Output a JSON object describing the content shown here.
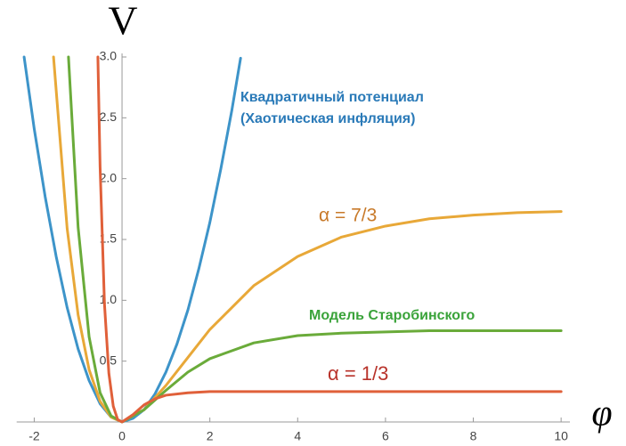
{
  "chart_data": {
    "type": "line",
    "annotations": [
      "Квадратичный потенциал",
      "(Хаотическая инфляция)",
      "α = 7/3",
      "Модель Старобинского",
      "α = 1/3"
    ],
    "ylabel": "V",
    "xlabel": "φ",
    "xlim": [
      -2.4,
      10.2
    ],
    "ylim": [
      0,
      3.0
    ],
    "xticks": [
      -2,
      0,
      2,
      4,
      6,
      8,
      10
    ],
    "yticks": [
      0.5,
      {
        "value": 1.0,
        "label": "1.0"
      },
      1.5,
      {
        "value": 2.0,
        "label": "2.0"
      },
      2.5,
      {
        "value": 3.0,
        "label": "3.0"
      }
    ],
    "grid": false,
    "series": [
      {
        "color": "#3d94c9",
        "x": [
          -2.23,
          -2,
          -1.75,
          -1.5,
          -1.25,
          -1,
          -0.75,
          -0.5,
          -0.25,
          0,
          0.25,
          0.5,
          0.75,
          1,
          1.25,
          1.5,
          1.75,
          2,
          2.25,
          2.5,
          2.7
        ],
        "values": [
          3.0,
          2.41,
          1.85,
          1.36,
          0.94,
          0.6,
          0.34,
          0.15,
          0.04,
          0,
          0.03,
          0.1,
          0.23,
          0.41,
          0.64,
          0.92,
          1.26,
          1.64,
          2.08,
          2.56,
          2.99
        ]
      },
      {
        "color": "#e8a838",
        "x": [
          -1.56,
          -1.25,
          -1,
          -0.75,
          -0.5,
          -0.25,
          0,
          0.5,
          1,
          1.5,
          2,
          3,
          4,
          5,
          6,
          7,
          8,
          9,
          10
        ],
        "values": [
          3.0,
          1.59,
          0.88,
          0.43,
          0.17,
          0.04,
          0,
          0.1,
          0.3,
          0.53,
          0.76,
          1.12,
          1.36,
          1.52,
          1.61,
          1.67,
          1.7,
          1.72,
          1.73
        ]
      },
      {
        "color": "#6aab3a",
        "x": [
          -1.22,
          -1,
          -0.75,
          -0.5,
          -0.25,
          0,
          0.5,
          1,
          1.5,
          2,
          3,
          4,
          5,
          6,
          7,
          8,
          9,
          10
        ],
        "values": [
          3.0,
          1.6,
          0.7,
          0.24,
          0.05,
          0,
          0.1,
          0.26,
          0.41,
          0.52,
          0.65,
          0.71,
          0.73,
          0.74,
          0.75,
          0.75,
          0.75,
          0.75
        ]
      },
      {
        "color": "#e0603a",
        "x": [
          -0.55,
          -0.5,
          -0.4,
          -0.3,
          -0.2,
          -0.1,
          0,
          0.25,
          0.5,
          0.75,
          1,
          1.5,
          2,
          4,
          10
        ],
        "values": [
          3.0,
          2.1,
          0.97,
          0.4,
          0.13,
          0.02,
          0,
          0.06,
          0.14,
          0.19,
          0.22,
          0.24,
          0.25,
          0.25,
          0.25
        ]
      }
    ]
  }
}
